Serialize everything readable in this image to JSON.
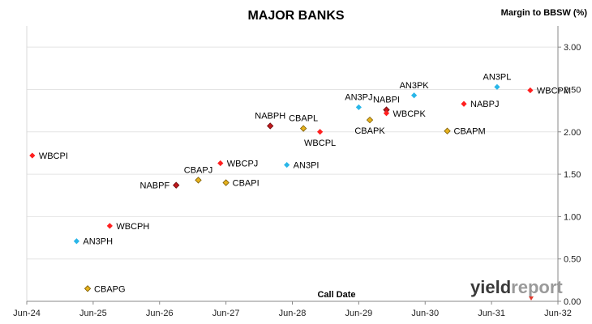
{
  "chart_data": {
    "type": "scatter",
    "title": "MAJOR BANKS",
    "xlabel": "Call Date",
    "ylabel": "Margin to BBSW (%)",
    "x_ticks": [
      "Jun-24",
      "Jun-25",
      "Jun-26",
      "Jun-27",
      "Jun-28",
      "Jun-29",
      "Jun-30",
      "Jun-31",
      "Jun-32"
    ],
    "y_ticks": [
      "0.00",
      "0.50",
      "1.00",
      "1.50",
      "2.00",
      "2.50",
      "3.00"
    ],
    "xlim": [
      "2024-06",
      "2032-06"
    ],
    "ylim": [
      0,
      3.25
    ],
    "grid": "horizontal",
    "points": [
      {
        "label": "WBCPI",
        "x": "2024-07",
        "y": 1.72,
        "color": "#ff1f1f"
      },
      {
        "label": "WBCPH",
        "x": "2025-09",
        "y": 0.89,
        "color": "#ff1f1f"
      },
      {
        "label": "AN3PH",
        "x": "2025-03",
        "y": 0.71,
        "color": "#29b6e8"
      },
      {
        "label": "CBAPG",
        "x": "2025-05",
        "y": 0.15,
        "color": "#e6b21e"
      },
      {
        "label": "NABPF",
        "x": "2026-09",
        "y": 1.37,
        "color": "#c0181c"
      },
      {
        "label": "CBAPJ",
        "x": "2027-01",
        "y": 1.43,
        "color": "#e6b21e"
      },
      {
        "label": "WBCPJ",
        "x": "2027-05",
        "y": 1.63,
        "color": "#ff1f1f"
      },
      {
        "label": "CBAPI",
        "x": "2027-06",
        "y": 1.4,
        "color": "#e6b21e"
      },
      {
        "label": "NABPH",
        "x": "2028-02",
        "y": 2.07,
        "color": "#c0181c"
      },
      {
        "label": "AN3PI",
        "x": "2028-05",
        "y": 1.61,
        "color": "#29b6e8"
      },
      {
        "label": "CBAPL",
        "x": "2028-08",
        "y": 2.04,
        "color": "#e6b21e"
      },
      {
        "label": "WBCPL",
        "x": "2028-11",
        "y": 2.0,
        "color": "#ff1f1f"
      },
      {
        "label": "AN3PJ",
        "x": "2029-06",
        "y": 2.29,
        "color": "#29b6e8"
      },
      {
        "label": "CBAPK",
        "x": "2029-08",
        "y": 2.14,
        "color": "#e6b21e"
      },
      {
        "label": "NABPI",
        "x": "2029-11",
        "y": 2.26,
        "color": "#c0181c"
      },
      {
        "label": "WBCPK",
        "x": "2029-11",
        "y": 2.22,
        "color": "#ff1f1f"
      },
      {
        "label": "AN3PK",
        "x": "2030-04",
        "y": 2.43,
        "color": "#29b6e8"
      },
      {
        "label": "CBAPM",
        "x": "2030-10",
        "y": 2.01,
        "color": "#e6b21e"
      },
      {
        "label": "NABPJ",
        "x": "2031-01",
        "y": 2.33,
        "color": "#ff1f1f"
      },
      {
        "label": "AN3PL",
        "x": "2031-07",
        "y": 2.53,
        "color": "#29b6e8"
      },
      {
        "label": "WBCPM",
        "x": "2032-01",
        "y": 2.49,
        "color": "#ff1f1f"
      }
    ]
  },
  "logo": {
    "text": "yieldreport"
  }
}
